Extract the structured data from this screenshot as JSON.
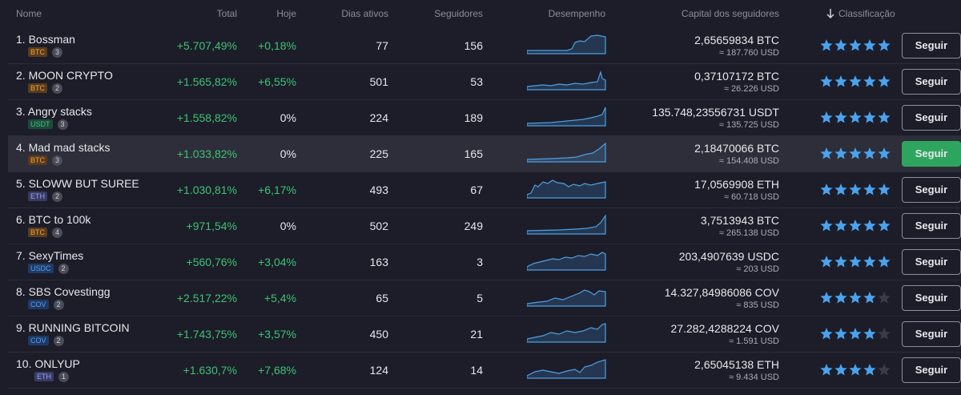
{
  "header": {
    "name": "Nome",
    "total": "Total",
    "today": "Hoje",
    "days": "Dias ativos",
    "followers": "Seguidores",
    "performance": "Desempenho",
    "capital": "Capital dos seguidores",
    "rating": "Classificação"
  },
  "rows": [
    {
      "name": "1. Bossman",
      "currency": "BTC",
      "count": 3,
      "total": "+5.707,49%",
      "today": "+0,18%",
      "days": 77,
      "followers": 156,
      "capital": "2,65659834 BTC",
      "usd": "≈ 187.760 USD",
      "rating": 5,
      "button": "Seguir"
    },
    {
      "name": "2. MOON CRYPTO",
      "currency": "BTC",
      "count": 2,
      "total": "+1.565,82%",
      "today": "+6,55%",
      "days": 501,
      "followers": 53,
      "capital": "0,37107172 BTC",
      "usd": "≈ 26.226 USD",
      "rating": 5,
      "button": "Seguir"
    },
    {
      "name": "3. Angry stacks",
      "currency": "USDT",
      "count": 3,
      "total": "+1.558,82%",
      "today": "0%",
      "days": 224,
      "followers": 189,
      "capital": "135.748,23556731 USDT",
      "usd": "≈ 135.725 USD",
      "rating": 5,
      "button": "Seguir"
    },
    {
      "name": "4. Mad mad stacks",
      "currency": "BTC",
      "count": 3,
      "total": "+1.033,82%",
      "today": "0%",
      "days": 225,
      "followers": 165,
      "capital": "2,18470066 BTC",
      "usd": "≈ 154.408 USD",
      "rating": 5,
      "button": "Seguir",
      "highlighted": true
    },
    {
      "name": "5. SLOWW BUT SUREE",
      "currency": "ETH",
      "count": 2,
      "total": "+1.030,81%",
      "today": "+6,17%",
      "days": 493,
      "followers": 67,
      "capital": "17,0569908 ETH",
      "usd": "≈ 60.718 USD",
      "rating": 5,
      "button": "Seguir"
    },
    {
      "name": "6. BTC to 100k",
      "currency": "BTC",
      "count": 4,
      "total": "+971,54%",
      "today": "0%",
      "days": 502,
      "followers": 249,
      "capital": "3,7513943 BTC",
      "usd": "≈ 265.138 USD",
      "rating": 5,
      "button": "Seguir"
    },
    {
      "name": "7. SexyTimes",
      "currency": "USDC",
      "count": 2,
      "total": "+560,76%",
      "today": "+3,04%",
      "days": 163,
      "followers": 3,
      "capital": "203,4907639 USDC",
      "usd": "≈ 203 USD",
      "rating": 5,
      "button": "Seguir"
    },
    {
      "name": "8. SBS Covestingg",
      "currency": "COV",
      "count": 2,
      "total": "+2.517,22%",
      "today": "+5,4%",
      "days": 65,
      "followers": 5,
      "capital": "14.327,84986086 COV",
      "usd": "≈ 835 USD",
      "rating": 4,
      "button": "Seguir"
    },
    {
      "name": "9. RUNNING BITCOIN",
      "currency": "COV",
      "count": 2,
      "total": "+1.743,75%",
      "today": "+3,57%",
      "days": 450,
      "followers": 21,
      "capital": "27.282,4288224 COV",
      "usd": "≈ 1.591 USD",
      "rating": 4,
      "button": "Seguir"
    },
    {
      "name": "10. ONLYUP",
      "currency": "ETH",
      "count": 1,
      "total": "+1.630,7%",
      "today": "+7,68%",
      "days": 124,
      "followers": 14,
      "capital": "2,65045138 ETH",
      "usd": "≈ 9.434 USD",
      "rating": 4,
      "button": "Seguir"
    }
  ]
}
